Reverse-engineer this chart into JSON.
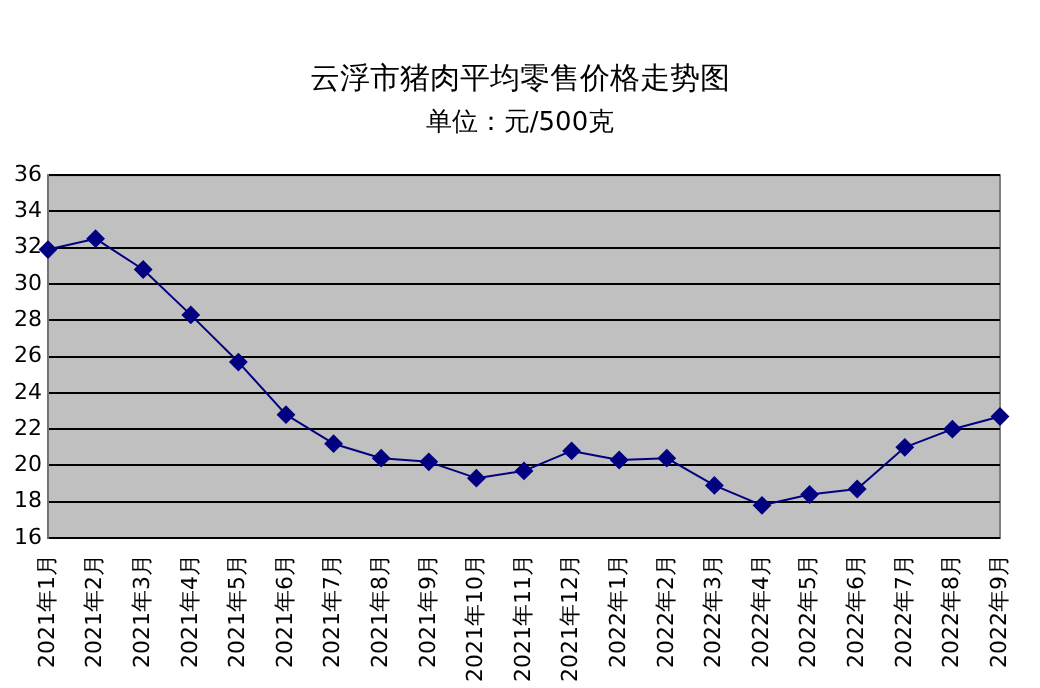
{
  "chart_data": {
    "type": "line",
    "title": "云浮市猪肉平均零售价格走势图",
    "subtitle": "单位：元/500克",
    "categories": [
      "2021年1月",
      "2021年2月",
      "2021年3月",
      "2021年4月",
      "2021年5月",
      "2021年6月",
      "2021年7月",
      "2021年8月",
      "2021年9月",
      "2021年10月",
      "2021年11月",
      "2021年12月",
      "2022年1月",
      "2022年2月",
      "2022年3月",
      "2022年4月",
      "2022年5月",
      "2022年6月",
      "2022年7月",
      "2022年8月",
      "2022年9月"
    ],
    "series": [
      {
        "color": "#000080",
        "values": [
          31.9,
          32.5,
          30.8,
          28.3,
          25.7,
          22.8,
          21.2,
          20.4,
          20.2,
          19.3,
          19.7,
          20.8,
          20.3,
          20.4,
          18.9,
          17.8,
          18.4,
          18.7,
          21.0,
          22.0,
          22.7
        ]
      }
    ],
    "ylim": [
      16,
      36
    ],
    "yticks": [
      16,
      18,
      20,
      22,
      24,
      26,
      28,
      30,
      32,
      34,
      36
    ],
    "grid": "y",
    "legend": false,
    "marker": "diamond",
    "line_style": "solid"
  }
}
